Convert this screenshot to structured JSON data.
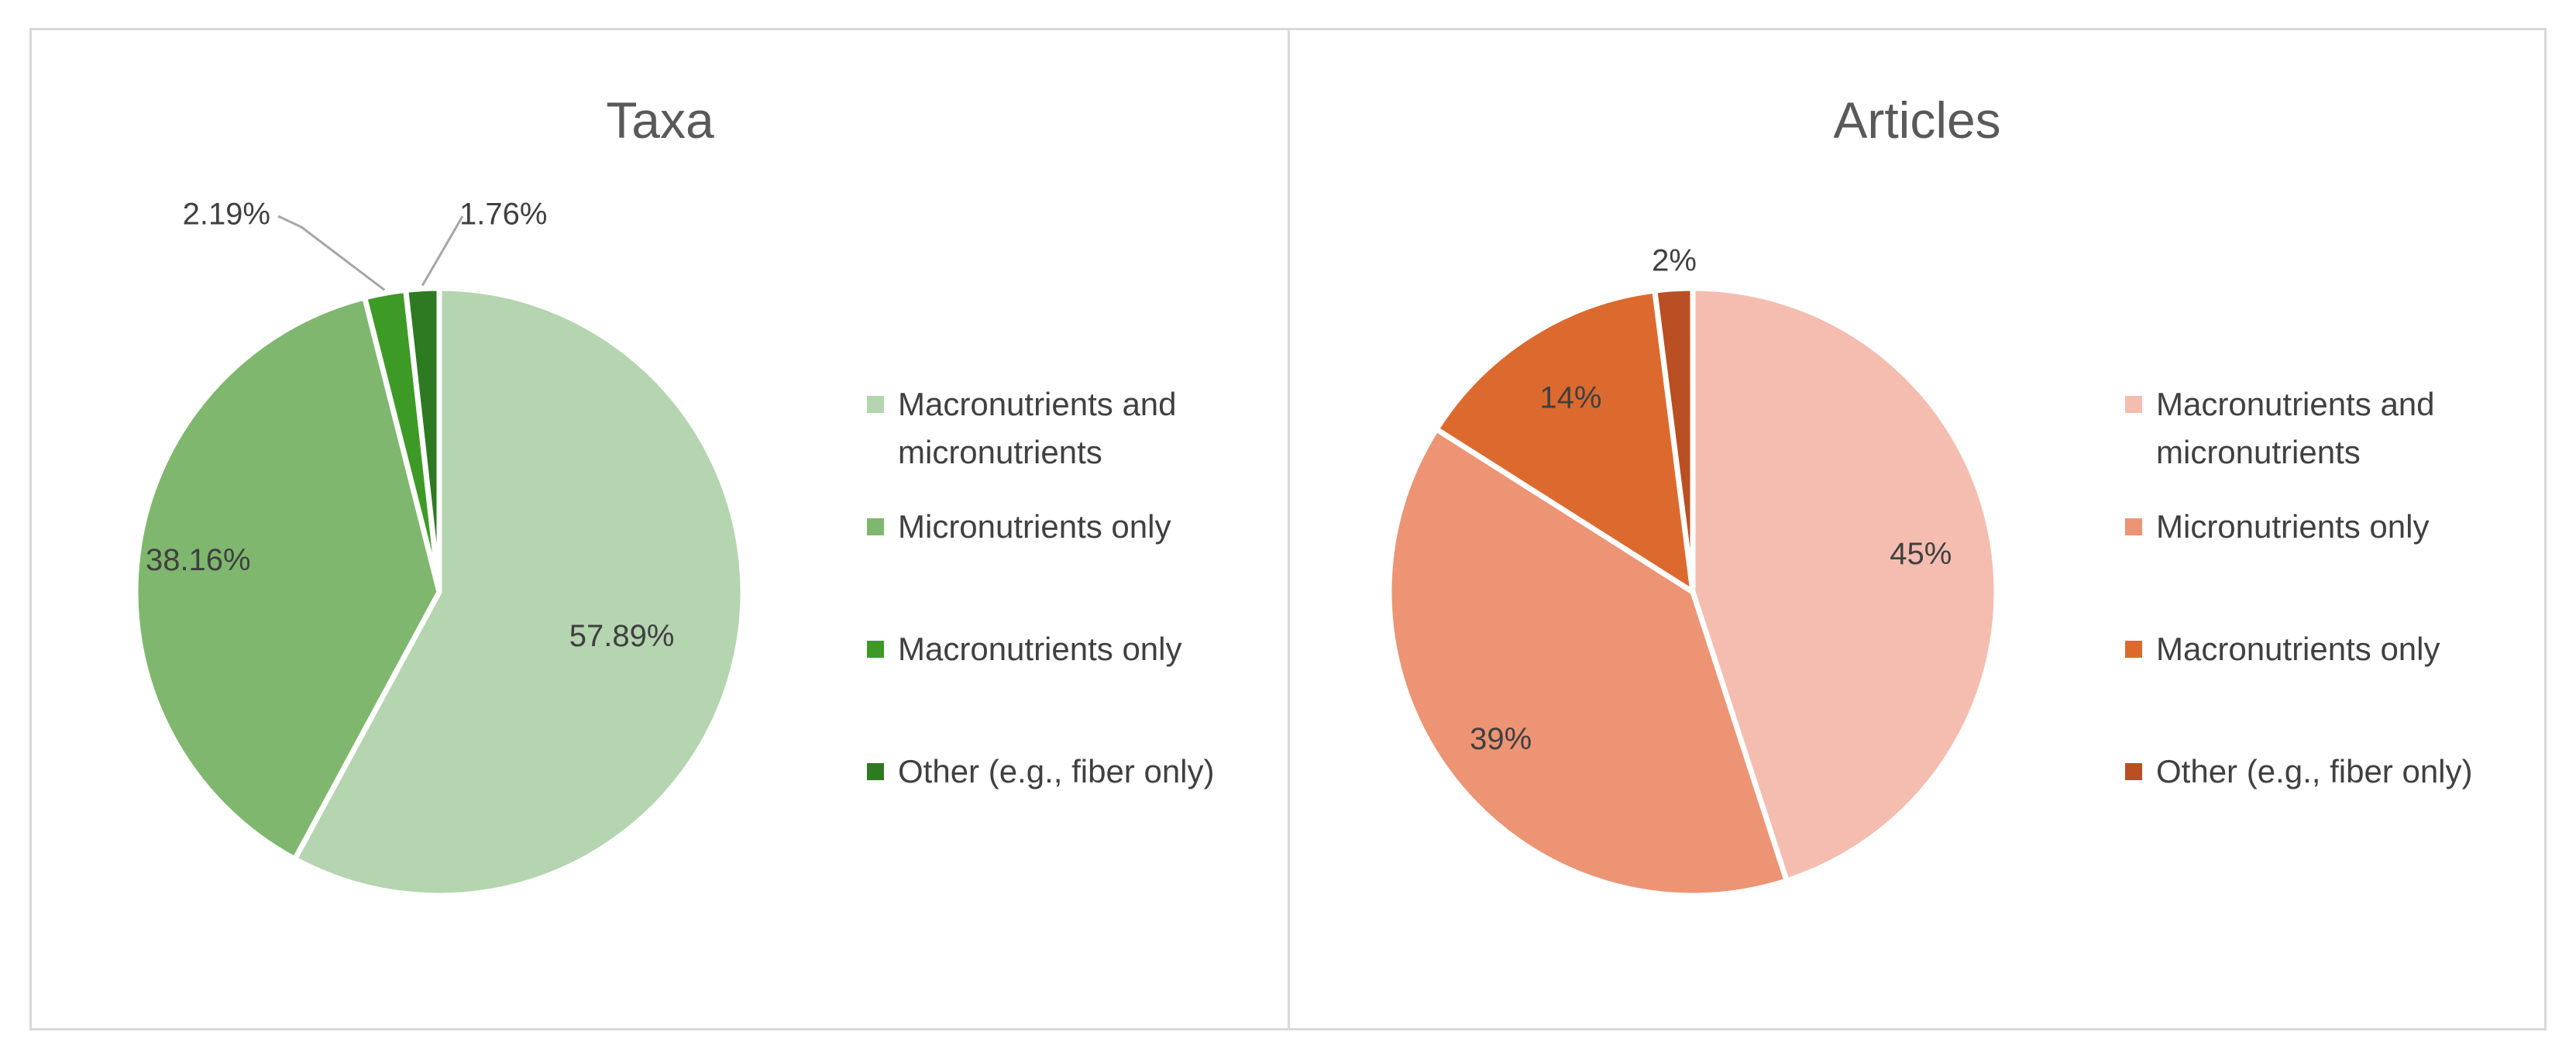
{
  "chart_data": [
    {
      "type": "pie",
      "title": "Taxa",
      "categories": [
        "Macronutrients and micronutrients",
        "Micronutrients only",
        "Macronutrients only",
        "Other (e.g., fiber only)"
      ],
      "values": [
        57.89,
        38.16,
        2.19,
        1.76
      ],
      "labels": [
        "57.89%",
        "38.16%",
        "2.19%",
        "1.76%"
      ],
      "colors": [
        "#b5d4b0",
        "#7fb76e",
        "#3e9a26",
        "#2e7a22"
      ],
      "legend": "right"
    },
    {
      "type": "pie",
      "title": "Articles",
      "categories": [
        "Macronutrients and micronutrients",
        "Micronutrients only",
        "Macronutrients only",
        "Other (e.g., fiber only)"
      ],
      "values": [
        45,
        39,
        14,
        2
      ],
      "labels": [
        "45%",
        "39%",
        "14%",
        "2%"
      ],
      "colors": [
        "#f4bdb0",
        "#ec9474",
        "#dc6a2e",
        "#b94f22"
      ],
      "legend": "right"
    }
  ]
}
